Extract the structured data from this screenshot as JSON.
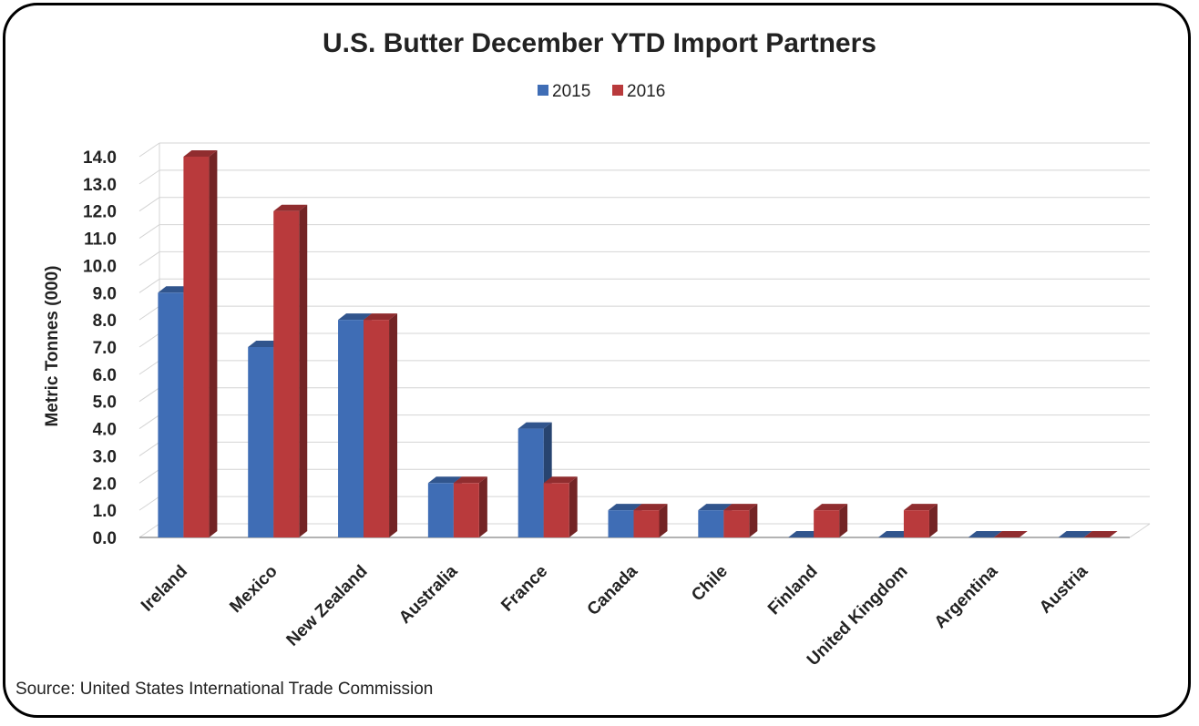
{
  "chart_data": {
    "type": "bar",
    "title": "U.S. Butter December YTD Import Partners",
    "ylabel": "Metric Tonnes (000)",
    "xlabel": "",
    "ylim": [
      0,
      14
    ],
    "yticks": [
      "0.0",
      "1.0",
      "2.0",
      "3.0",
      "4.0",
      "5.0",
      "6.0",
      "7.0",
      "8.0",
      "9.0",
      "10.0",
      "11.0",
      "12.0",
      "13.0",
      "14.0"
    ],
    "categories": [
      "Ireland",
      "Mexico",
      "New Zealand",
      "Australia",
      "France",
      "Canada",
      "Chile",
      "Finland",
      "United Kingdom",
      "Argentina",
      "Austria"
    ],
    "series": [
      {
        "name": "2015",
        "color": "#3f6db5",
        "values": [
          9,
          7,
          8,
          2,
          4,
          1,
          1,
          0,
          0,
          0,
          0
        ]
      },
      {
        "name": "2016",
        "color": "#b93a3c",
        "values": [
          14,
          12,
          8,
          2,
          2,
          1,
          1,
          1,
          1,
          0,
          0
        ]
      }
    ],
    "grid": true,
    "legend": "top",
    "style": "3d-column"
  },
  "source_note": "Source: United States International Trade Commission"
}
